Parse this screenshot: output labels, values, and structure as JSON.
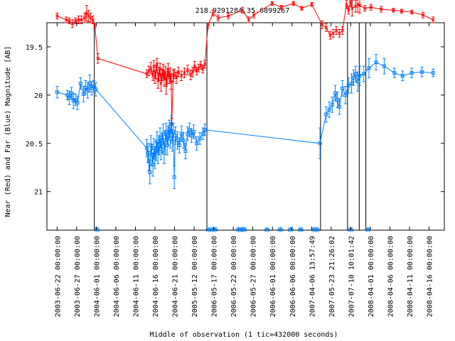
{
  "chart_data": {
    "type": "scatter",
    "title": "218.9291284,35.6899267",
    "xlabel": "Middle of observation (1 tic=432000 seconds)",
    "ylabel": "Near (Red) and Far (Blue) Magnitude [AB]",
    "y_reversed": true,
    "ylim": [
      21.4,
      19.25
    ],
    "yticks": [
      "19.5",
      "20",
      "20.5",
      "21"
    ],
    "ytick_values": [
      19.5,
      20.0,
      20.5,
      21.0
    ],
    "xticks": [
      "2003-06-22 00:00:00",
      "2003-06-27 00:00:00",
      "2004-06-01 00:00:00",
      "2004-06-06 00:00:00",
      "2004-06-11 00:00:00",
      "2004-06-16 00:00:00",
      "2004-06-21 00:00:00",
      "2005-05-12 00:00:00",
      "2006-05-17 00:00:00",
      "2006-05-22 00:00:00",
      "2006-05-27 00:00:00",
      "2006-06-01 00:00:00",
      "2006-06-06 00:00:00",
      "2007-04-06 13:57:49",
      "2007-05-23 21:26:02",
      "2007-07-10 10:01:42",
      "2008-04-01 00:00:00",
      "2008-04-06 00:00:00",
      "2008-04-11 00:00:00",
      "2008-04-16 00:00:00"
    ],
    "grid": false,
    "series": [
      {
        "name": "Near (Red)",
        "color": "#ff0000",
        "marker": "x",
        "points": [
          [
            1.0,
            19.18,
            0.03
          ],
          [
            1.9,
            19.22,
            0.03
          ],
          [
            2.2,
            19.23,
            0.03
          ],
          [
            2.5,
            19.26,
            0.04
          ],
          [
            2.8,
            19.23,
            0.03
          ],
          [
            3.1,
            19.22,
            0.04
          ],
          [
            3.4,
            19.22,
            0.04
          ],
          [
            3.7,
            19.2,
            0.05
          ],
          [
            3.9,
            19.15,
            0.08
          ],
          [
            4.1,
            19.18,
            0.06
          ],
          [
            4.3,
            19.2,
            0.05
          ],
          [
            4.5,
            19.22,
            0.04
          ],
          [
            4.7,
            19.28,
            0.03
          ],
          [
            5.0,
            19.62,
            0.05
          ],
          [
            9.8,
            19.78,
            0.04
          ],
          [
            10.0,
            19.75,
            0.05
          ],
          [
            10.2,
            19.72,
            0.06
          ],
          [
            10.4,
            19.8,
            0.05
          ],
          [
            10.5,
            19.7,
            0.06
          ],
          [
            10.6,
            19.82,
            0.06
          ],
          [
            10.7,
            19.76,
            0.07
          ],
          [
            10.8,
            19.68,
            0.06
          ],
          [
            10.9,
            19.85,
            0.08
          ],
          [
            11.0,
            19.78,
            0.07
          ],
          [
            11.1,
            19.73,
            0.06
          ],
          [
            11.2,
            19.88,
            0.08
          ],
          [
            11.3,
            19.79,
            0.06
          ],
          [
            11.4,
            19.75,
            0.07
          ],
          [
            11.5,
            19.83,
            0.08
          ],
          [
            11.6,
            19.77,
            0.07
          ],
          [
            11.7,
            19.9,
            0.09
          ],
          [
            11.8,
            19.8,
            0.08
          ],
          [
            11.9,
            19.74,
            0.07
          ],
          [
            12.0,
            19.82,
            0.06
          ],
          [
            12.1,
            19.79,
            0.07
          ],
          [
            12.2,
            19.86,
            0.08
          ],
          [
            12.25,
            20.3,
            0.06
          ],
          [
            12.4,
            19.8,
            0.06
          ],
          [
            12.5,
            19.78,
            0.05
          ],
          [
            12.7,
            19.82,
            0.06
          ],
          [
            12.9,
            19.76,
            0.05
          ],
          [
            13.2,
            19.8,
            0.05
          ],
          [
            13.5,
            19.77,
            0.05
          ],
          [
            13.8,
            19.74,
            0.05
          ],
          [
            14.1,
            19.79,
            0.05
          ],
          [
            14.3,
            19.76,
            0.05
          ],
          [
            14.5,
            19.7,
            0.05
          ],
          [
            14.7,
            19.75,
            0.04
          ],
          [
            14.9,
            19.72,
            0.04
          ],
          [
            15.1,
            19.69,
            0.04
          ],
          [
            15.3,
            19.73,
            0.04
          ],
          [
            15.5,
            19.68,
            0.04
          ],
          [
            15.8,
            19.28,
            0.03
          ],
          [
            16.3,
            19.15,
            0.03
          ],
          [
            16.8,
            19.2,
            0.03
          ],
          [
            17.8,
            19.18,
            0.03
          ],
          [
            19.2,
            19.12,
            0.03
          ],
          [
            19.8,
            19.22,
            0.03
          ],
          [
            20.3,
            19.17,
            0.03
          ],
          [
            22.1,
            19.05,
            0.02
          ],
          [
            23.0,
            19.09,
            0.02
          ],
          [
            24.2,
            19.05,
            0.02
          ],
          [
            25.0,
            19.1,
            0.02
          ],
          [
            26.0,
            19.06,
            0.02
          ],
          [
            27.0,
            19.27,
            0.04
          ],
          [
            27.4,
            19.3,
            0.04
          ],
          [
            27.8,
            19.38,
            0.04
          ],
          [
            28.1,
            19.36,
            0.04
          ],
          [
            28.4,
            19.33,
            0.04
          ],
          [
            28.7,
            19.36,
            0.04
          ],
          [
            29.0,
            19.33,
            0.04
          ],
          [
            29.4,
            19.06,
            0.04
          ],
          [
            29.6,
            19.12,
            0.04
          ],
          [
            29.8,
            19.03,
            0.05
          ],
          [
            29.95,
            19.1,
            0.08
          ],
          [
            30.3,
            19.08,
            0.06
          ],
          [
            30.5,
            19.06,
            0.08
          ],
          [
            30.7,
            19.07,
            0.08
          ],
          [
            31.2,
            19.1,
            0.03
          ],
          [
            31.8,
            19.09,
            0.03
          ],
          [
            32.8,
            19.11,
            0.03
          ],
          [
            34.0,
            19.12,
            0.02
          ],
          [
            34.8,
            19.13,
            0.02
          ],
          [
            35.8,
            19.14,
            0.02
          ],
          [
            36.9,
            19.17,
            0.03
          ],
          [
            37.9,
            19.22,
            0.03
          ]
        ]
      },
      {
        "name": "Far (Blue)",
        "color": "#0080ff",
        "marker": "square",
        "points": [
          [
            1.0,
            19.97,
            0.06
          ],
          [
            2.0,
            20.0,
            0.05
          ],
          [
            2.2,
            20.03,
            0.07
          ],
          [
            2.4,
            19.98,
            0.06
          ],
          [
            2.6,
            20.06,
            0.08
          ],
          [
            2.8,
            20.05,
            0.06
          ],
          [
            3.0,
            20.08,
            0.07
          ],
          [
            3.3,
            19.88,
            0.06
          ],
          [
            3.6,
            19.99,
            0.08
          ],
          [
            3.8,
            19.92,
            0.07
          ],
          [
            4.0,
            19.95,
            0.08
          ],
          [
            4.2,
            19.88,
            0.09
          ],
          [
            4.4,
            19.93,
            0.07
          ],
          [
            4.6,
            19.91,
            0.06
          ],
          [
            4.8,
            19.94,
            0.07
          ],
          [
            9.8,
            20.55,
            0.09
          ],
          [
            9.9,
            20.6,
            0.1
          ],
          [
            10.0,
            20.68,
            0.1
          ],
          [
            10.1,
            20.8,
            0.12
          ],
          [
            10.2,
            20.52,
            0.1
          ],
          [
            10.3,
            20.62,
            0.11
          ],
          [
            10.4,
            20.72,
            0.12
          ],
          [
            10.5,
            20.55,
            0.1
          ],
          [
            10.6,
            20.65,
            0.11
          ],
          [
            10.7,
            20.58,
            0.1
          ],
          [
            10.8,
            20.48,
            0.1
          ],
          [
            10.9,
            20.6,
            0.11
          ],
          [
            11.0,
            20.52,
            0.1
          ],
          [
            11.1,
            20.44,
            0.1
          ],
          [
            11.2,
            20.56,
            0.11
          ],
          [
            11.3,
            20.5,
            0.1
          ],
          [
            11.4,
            20.4,
            0.1
          ],
          [
            11.5,
            20.6,
            0.11
          ],
          [
            11.6,
            20.47,
            0.1
          ],
          [
            11.7,
            20.38,
            0.09
          ],
          [
            11.8,
            20.52,
            0.1
          ],
          [
            11.9,
            20.42,
            0.1
          ],
          [
            12.0,
            20.35,
            0.09
          ],
          [
            12.1,
            20.45,
            0.1
          ],
          [
            12.2,
            20.3,
            0.09
          ],
          [
            12.3,
            20.48,
            0.1
          ],
          [
            12.4,
            20.38,
            0.09
          ],
          [
            12.5,
            20.85,
            0.12
          ],
          [
            12.6,
            20.42,
            0.09
          ],
          [
            12.8,
            20.47,
            0.09
          ],
          [
            13.0,
            20.52,
            0.08
          ],
          [
            13.2,
            20.4,
            0.08
          ],
          [
            13.4,
            20.47,
            0.08
          ],
          [
            13.6,
            20.58,
            0.08
          ],
          [
            13.8,
            20.4,
            0.07
          ],
          [
            14.0,
            20.36,
            0.07
          ],
          [
            14.2,
            20.42,
            0.07
          ],
          [
            14.4,
            20.38,
            0.07
          ],
          [
            14.7,
            20.5,
            0.07
          ],
          [
            15.0,
            20.45,
            0.06
          ],
          [
            15.3,
            20.4,
            0.06
          ],
          [
            15.5,
            20.36,
            0.06
          ],
          [
            26.8,
            20.5,
            0.16
          ],
          [
            27.4,
            20.2,
            0.08
          ],
          [
            27.7,
            20.15,
            0.08
          ],
          [
            28.0,
            20.1,
            0.08
          ],
          [
            28.3,
            19.98,
            0.08
          ],
          [
            28.5,
            20.05,
            0.08
          ],
          [
            28.7,
            20.12,
            0.08
          ],
          [
            29.0,
            19.93,
            0.08
          ],
          [
            29.3,
            20.0,
            0.09
          ],
          [
            29.6,
            19.9,
            0.08
          ],
          [
            29.9,
            19.88,
            0.1
          ],
          [
            30.1,
            19.82,
            0.08
          ],
          [
            30.3,
            19.78,
            0.08
          ],
          [
            30.5,
            19.86,
            0.1
          ],
          [
            30.7,
            19.8,
            0.1
          ],
          [
            31.1,
            19.78,
            0.08
          ],
          [
            31.6,
            19.72,
            0.1
          ],
          [
            32.3,
            19.66,
            0.08
          ],
          [
            33.1,
            19.7,
            0.08
          ],
          [
            34.1,
            19.77,
            0.05
          ],
          [
            34.9,
            19.8,
            0.05
          ],
          [
            35.8,
            19.77,
            0.05
          ],
          [
            36.8,
            19.76,
            0.05
          ],
          [
            37.9,
            19.77,
            0.04
          ]
        ]
      }
    ],
    "vertical_lines": [
      4.65,
      15.7,
      26.85,
      29.5,
      30.65,
      31.3
    ],
    "upper_marks": [
      4.9,
      15.85,
      16.2,
      16.5,
      18.8,
      19.1,
      19.35,
      21.6,
      22.9,
      23.9,
      24.9,
      26.2,
      26.5,
      29.8,
      31.5
    ]
  }
}
